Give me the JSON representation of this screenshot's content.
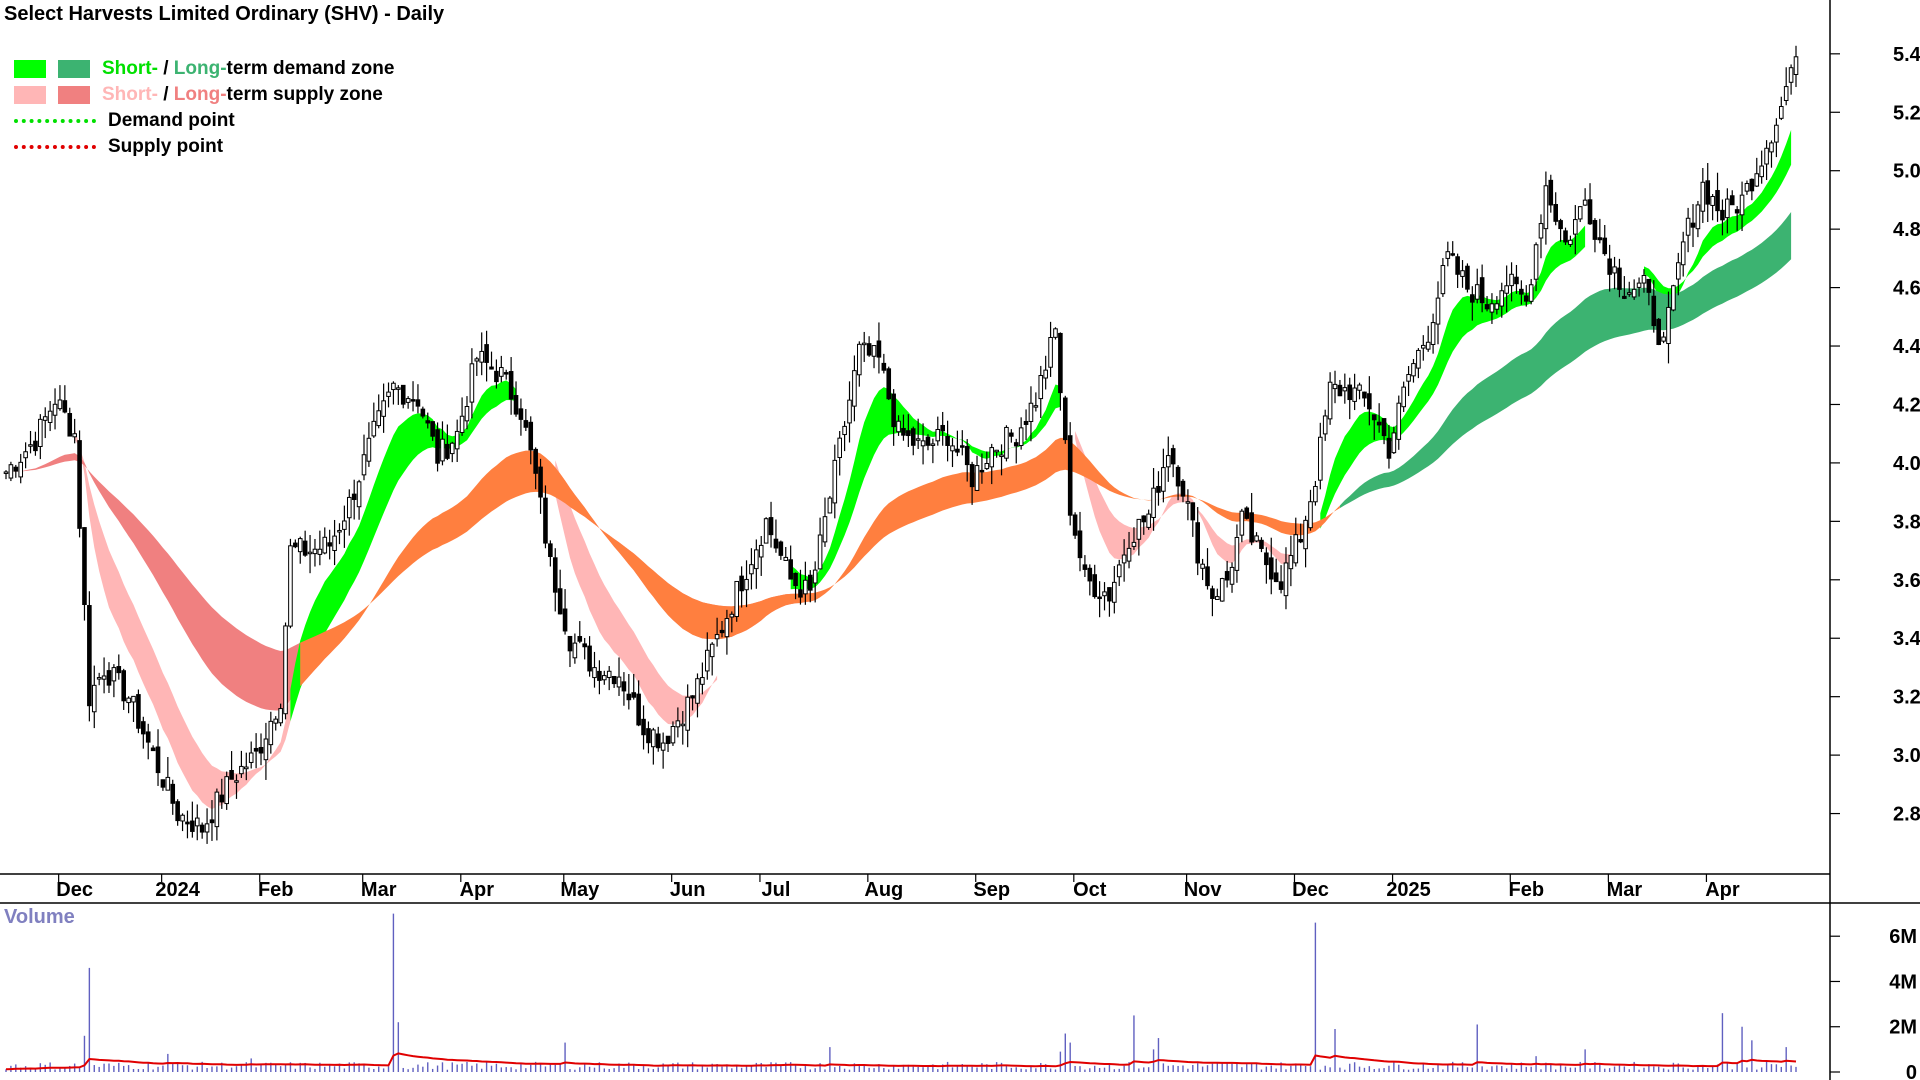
{
  "title": "Select Harvests Limited Ordinary (SHV) - Daily",
  "legend": {
    "demand_short": "Short-",
    "demand_sep": " / ",
    "demand_long": "Long-",
    "demand_rest": "term demand zone",
    "supply_short": "Short-",
    "supply_sep": " / ",
    "supply_long": "Long-",
    "supply_rest": "term supply zone",
    "demand_point": "Demand point",
    "supply_point": "Supply point"
  },
  "colors": {
    "short_demand": "#00ff00",
    "long_demand": "#3cb371",
    "short_supply": "#ffb6b6",
    "long_supply": "#f08080",
    "transition": "#ff7f3f",
    "volume_bar": "#6060c0",
    "volume_avg": "#e00000",
    "candle": "#000000"
  },
  "volume_label": "Volume",
  "chart_data": {
    "type": "candlestick",
    "price_axis": {
      "ticks": [
        2.8,
        3.0,
        3.2,
        3.4,
        3.6,
        3.8,
        4.0,
        4.2,
        4.4,
        4.6,
        4.8,
        5.0,
        5.2,
        5.4
      ],
      "range": [
        2.6,
        5.55
      ]
    },
    "volume_axis": {
      "ticks": [
        "0",
        "2M",
        "4M",
        "6M"
      ],
      "tick_values": [
        0,
        2,
        4,
        6
      ],
      "range": [
        0,
        7.6
      ]
    },
    "x_labels": [
      "Dec",
      "2024",
      "Feb",
      "Mar",
      "Apr",
      "May",
      "Jun",
      "Jul",
      "Aug",
      "Sep",
      "Oct",
      "Nov",
      "Dec",
      "2025",
      "Feb",
      "Mar",
      "Apr"
    ],
    "x_label_index": [
      14,
      35,
      55,
      76,
      96,
      117,
      139,
      157,
      179,
      201,
      221,
      244,
      266,
      286,
      310,
      330,
      350
    ],
    "close_path": [
      [
        0,
        3.97
      ],
      [
        6,
        4.08
      ],
      [
        10,
        4.22
      ],
      [
        14,
        4.1
      ],
      [
        16,
        3.5
      ],
      [
        17,
        3.2
      ],
      [
        20,
        3.3
      ],
      [
        25,
        3.2
      ],
      [
        30,
        3.0
      ],
      [
        35,
        2.8
      ],
      [
        40,
        2.75
      ],
      [
        46,
        2.92
      ],
      [
        51,
        3.0
      ],
      [
        56,
        3.2
      ],
      [
        58,
        3.7
      ],
      [
        62,
        3.7
      ],
      [
        66,
        3.72
      ],
      [
        70,
        3.86
      ],
      [
        75,
        4.1
      ],
      [
        79,
        4.26
      ],
      [
        84,
        4.22
      ],
      [
        88,
        4.02
      ],
      [
        92,
        4.1
      ],
      [
        96,
        4.36
      ],
      [
        101,
        4.3
      ],
      [
        105,
        4.18
      ],
      [
        108,
        3.95
      ],
      [
        111,
        3.65
      ],
      [
        115,
        3.4
      ],
      [
        120,
        3.3
      ],
      [
        125,
        3.28
      ],
      [
        130,
        3.1
      ],
      [
        134,
        3.05
      ],
      [
        140,
        3.2
      ],
      [
        145,
        3.4
      ],
      [
        150,
        3.6
      ],
      [
        155,
        3.8
      ],
      [
        160,
        3.6
      ],
      [
        164,
        3.55
      ],
      [
        170,
        4.05
      ],
      [
        174,
        4.38
      ],
      [
        178,
        4.35
      ],
      [
        182,
        4.1
      ],
      [
        187,
        4.05
      ],
      [
        192,
        4.1
      ],
      [
        197,
        3.95
      ],
      [
        201,
        4.05
      ],
      [
        206,
        4.1
      ],
      [
        210,
        4.22
      ],
      [
        214,
        4.45
      ],
      [
        217,
        3.85
      ],
      [
        220,
        3.6
      ],
      [
        225,
        3.55
      ],
      [
        229,
        3.75
      ],
      [
        233,
        3.82
      ],
      [
        237,
        4.05
      ],
      [
        240,
        3.92
      ],
      [
        243,
        3.7
      ],
      [
        246,
        3.55
      ],
      [
        249,
        3.6
      ],
      [
        252,
        3.8
      ],
      [
        256,
        3.68
      ],
      [
        260,
        3.6
      ],
      [
        264,
        3.75
      ],
      [
        267,
        3.95
      ],
      [
        270,
        4.25
      ],
      [
        274,
        4.25
      ],
      [
        278,
        4.2
      ],
      [
        282,
        4.05
      ],
      [
        286,
        4.3
      ],
      [
        290,
        4.45
      ],
      [
        294,
        4.7
      ],
      [
        298,
        4.6
      ],
      [
        302,
        4.55
      ],
      [
        306,
        4.62
      ],
      [
        310,
        4.55
      ],
      [
        314,
        4.95
      ],
      [
        318,
        4.75
      ],
      [
        322,
        4.9
      ],
      [
        326,
        4.72
      ],
      [
        330,
        4.6
      ],
      [
        334,
        4.6
      ],
      [
        338,
        4.4
      ],
      [
        342,
        4.75
      ],
      [
        346,
        4.95
      ],
      [
        350,
        4.85
      ],
      [
        354,
        4.9
      ],
      [
        358,
        5.05
      ],
      [
        362,
        5.22
      ],
      [
        364,
        5.35
      ]
    ],
    "zones": [
      {
        "type": "short_supply",
        "from": 14,
        "to": 58
      },
      {
        "type": "long_supply",
        "from": 0,
        "to": 70
      },
      {
        "type": "short_demand",
        "from": 58,
        "to": 104
      },
      {
        "type": "long_supply",
        "from": 112,
        "to": 166
      },
      {
        "type": "short_supply",
        "from": 112,
        "to": 145
      },
      {
        "type": "short_demand",
        "from": 160,
        "to": 215
      },
      {
        "type": "short_supply",
        "from": 218,
        "to": 262
      },
      {
        "type": "short_demand",
        "from": 268,
        "to": 322
      },
      {
        "type": "short_demand",
        "from": 334,
        "to": 364
      },
      {
        "type": "long_demand",
        "from": 272,
        "to": 364
      }
    ],
    "volume_spikes": [
      [
        16,
        1.6
      ],
      [
        17,
        4.6
      ],
      [
        33,
        0.8
      ],
      [
        50,
        0.6
      ],
      [
        79,
        7.0
      ],
      [
        80,
        2.2
      ],
      [
        114,
        1.3
      ],
      [
        168,
        1.1
      ],
      [
        215,
        0.9
      ],
      [
        216,
        1.7
      ],
      [
        217,
        1.3
      ],
      [
        230,
        2.5
      ],
      [
        234,
        1.0
      ],
      [
        235,
        1.5
      ],
      [
        267,
        6.6
      ],
      [
        271,
        1.9
      ],
      [
        300,
        2.1
      ],
      [
        312,
        0.7
      ],
      [
        322,
        1.0
      ],
      [
        350,
        2.6
      ],
      [
        354,
        2.0
      ],
      [
        356,
        1.4
      ],
      [
        363,
        1.1
      ]
    ]
  }
}
